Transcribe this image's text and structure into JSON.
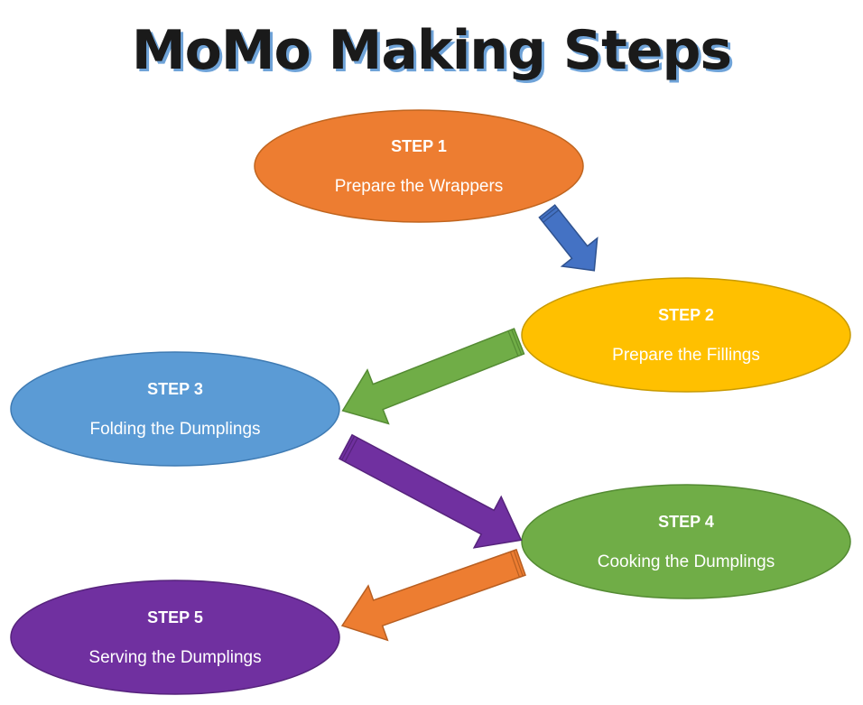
{
  "title": "MoMo Making Steps",
  "colors": {
    "step1": "#ED7D31",
    "step2": "#FFC000",
    "step3": "#5B9BD5",
    "step4": "#70AD47",
    "step5": "#7030A0",
    "arrow1": "#4472C4",
    "arrow2": "#70AD47",
    "arrow3": "#7030A0",
    "arrow4": "#ED7D31",
    "title_shadow": "#6FA3D8"
  },
  "steps": [
    {
      "label": "STEP 1",
      "text": "Prepare the Wrappers"
    },
    {
      "label": "STEP 2",
      "text": "Prepare the Fillings"
    },
    {
      "label": "STEP 3",
      "text": "Folding the Dumplings"
    },
    {
      "label": "STEP 4",
      "text": "Cooking the Dumplings"
    },
    {
      "label": "STEP 5",
      "text": "Serving the Dumplings"
    }
  ]
}
